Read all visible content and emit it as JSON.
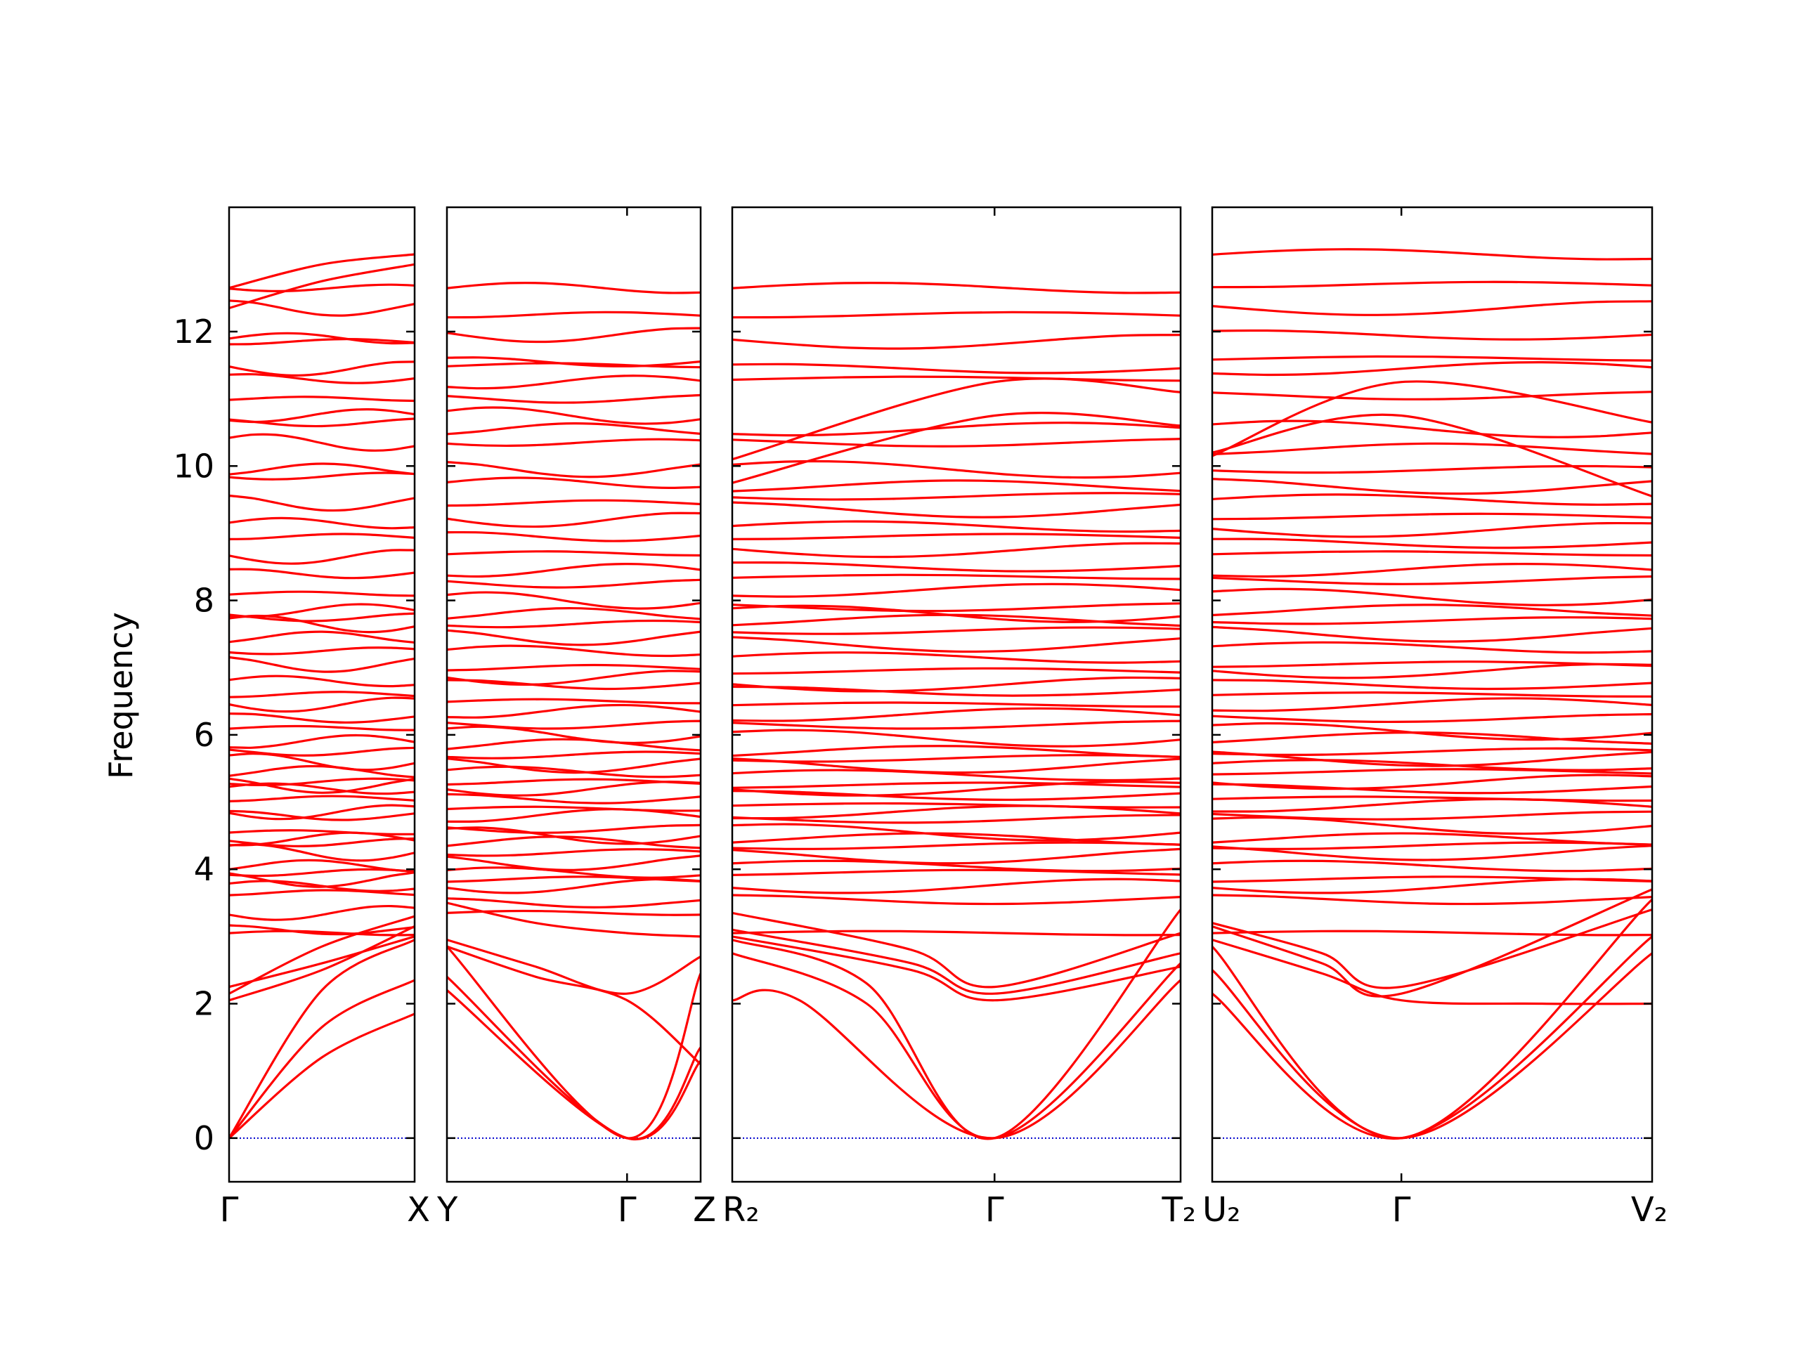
{
  "chart_data": {
    "type": "line",
    "ylabel": "Frequency",
    "ylim": [
      -0.65,
      13.85
    ],
    "yticks": [
      0,
      2,
      4,
      6,
      8,
      10,
      12
    ],
    "colors": {
      "band": "#ff0000",
      "zero_line": "#0000cc",
      "axes": "#000000"
    },
    "panels": [
      {
        "id": "p1",
        "xticks": [
          {
            "pos": 0,
            "label": "Γ"
          },
          {
            "pos": 1,
            "label": "X"
          }
        ],
        "paths": [
          {
            "name": "acoustic",
            "points": [
              [
                0,
                0
              ],
              [
                0.5,
                1.2
              ],
              [
                1,
                1.85
              ]
            ]
          },
          {
            "name": "acoustic",
            "points": [
              [
                0,
                0
              ],
              [
                0.5,
                1.65
              ],
              [
                1,
                2.35
              ]
            ]
          },
          {
            "name": "acoustic",
            "points": [
              [
                0,
                0
              ],
              [
                0.5,
                2.2
              ],
              [
                1,
                2.95
              ]
            ]
          },
          {
            "name": "optical",
            "points": [
              [
                0,
                2.05
              ],
              [
                0.5,
                2.5
              ],
              [
                1,
                3.15
              ]
            ]
          },
          {
            "name": "optical",
            "points": [
              [
                0,
                2.15
              ],
              [
                0.5,
                2.85
              ],
              [
                1,
                3.3
              ]
            ]
          },
          {
            "name": "optical",
            "points": [
              [
                0,
                2.25
              ],
              [
                0.5,
                2.6
              ],
              [
                1,
                3.0
              ]
            ]
          }
        ],
        "flat_levels": [
          3.05,
          3.1,
          3.35,
          3.65,
          3.75,
          3.85,
          3.95,
          4.05,
          4.25,
          4.4,
          4.45,
          4.55,
          4.8,
          4.85,
          5.05,
          5.2,
          5.25,
          5.3,
          5.45,
          5.6,
          5.75,
          5.9,
          6.1,
          6.25,
          6.45,
          6.6,
          6.8,
          7.05,
          7.25,
          7.45,
          7.65,
          7.75,
          7.85,
          8.1,
          8.4,
          8.65,
          8.95,
          9.15,
          9.45,
          9.85,
          9.95,
          10.35,
          10.65,
          10.75,
          11.0,
          11.3,
          11.45,
          11.85,
          11.9,
          12.35,
          12.65
        ],
        "top_bands": [
          {
            "points": [
              [
                0,
                12.35
              ],
              [
                0.5,
                12.75
              ],
              [
                1,
                13.0
              ]
            ]
          },
          {
            "points": [
              [
                0,
                12.65
              ],
              [
                0.5,
                13.0
              ],
              [
                1,
                13.15
              ]
            ]
          }
        ]
      },
      {
        "id": "p2",
        "xticks": [
          {
            "pos": 0,
            "label": "Y"
          },
          {
            "pos": 0.71,
            "label": "Γ"
          },
          {
            "pos": 1,
            "label": "Z"
          }
        ],
        "paths": [
          {
            "name": "acoustic",
            "points": [
              [
                0,
                2.2
              ],
              [
                0.71,
                0
              ],
              [
                1,
                1.15
              ]
            ]
          },
          {
            "name": "acoustic",
            "points": [
              [
                0,
                2.4
              ],
              [
                0.71,
                0
              ],
              [
                1,
                1.35
              ]
            ]
          },
          {
            "name": "acoustic",
            "points": [
              [
                0,
                2.85
              ],
              [
                0.71,
                0
              ],
              [
                1,
                2.45
              ]
            ]
          },
          {
            "name": "optical",
            "points": [
              [
                0,
                2.85
              ],
              [
                0.35,
                2.4
              ],
              [
                0.71,
                2.05
              ],
              [
                1,
                1.1
              ]
            ]
          },
          {
            "name": "optical",
            "points": [
              [
                0,
                2.95
              ],
              [
                0.35,
                2.55
              ],
              [
                0.71,
                2.15
              ],
              [
                1,
                2.7
              ]
            ]
          },
          {
            "name": "optical",
            "points": [
              [
                0,
                3.5
              ],
              [
                0.35,
                3.2
              ],
              [
                0.71,
                3.05
              ],
              [
                1,
                3.0
              ]
            ]
          }
        ],
        "flat_levels": [
          3.35,
          3.5,
          3.75,
          3.85,
          3.95,
          4.1,
          4.25,
          4.4,
          4.5,
          4.6,
          4.8,
          4.9,
          5.05,
          5.2,
          5.3,
          5.45,
          5.55,
          5.7,
          5.85,
          6.0,
          6.15,
          6.35,
          6.5,
          6.75,
          6.85,
          7.0,
          7.25,
          7.45,
          7.65,
          7.8,
          8.0,
          8.25,
          8.45,
          8.7,
          8.95,
          9.2,
          9.45,
          9.75,
          9.95,
          10.35,
          10.55,
          10.75,
          11.0,
          11.25,
          11.5,
          11.55,
          11.95,
          12.25,
          12.65
        ],
        "top_bands": []
      },
      {
        "id": "p3",
        "xticks": [
          {
            "pos": 0,
            "label": "R₂"
          },
          {
            "pos": 0.585,
            "label": "Γ"
          },
          {
            "pos": 1,
            "label": "T₂"
          }
        ],
        "paths": [
          {
            "name": "acoustic",
            "points": [
              [
                0,
                2.05
              ],
              [
                0.15,
                2.05
              ],
              [
                0.585,
                0
              ],
              [
                1,
                2.35
              ]
            ]
          },
          {
            "name": "acoustic",
            "points": [
              [
                0,
                2.75
              ],
              [
                0.3,
                2.0
              ],
              [
                0.585,
                0
              ],
              [
                1,
                2.6
              ]
            ]
          },
          {
            "name": "acoustic",
            "points": [
              [
                0,
                2.95
              ],
              [
                0.3,
                2.3
              ],
              [
                0.585,
                0
              ],
              [
                1,
                3.4
              ]
            ]
          },
          {
            "name": "optical",
            "points": [
              [
                0,
                3.0
              ],
              [
                0.4,
                2.5
              ],
              [
                0.585,
                2.05
              ],
              [
                1,
                2.55
              ]
            ]
          },
          {
            "name": "optical",
            "points": [
              [
                0,
                3.1
              ],
              [
                0.4,
                2.6
              ],
              [
                0.585,
                2.15
              ],
              [
                1,
                2.75
              ]
            ]
          },
          {
            "name": "optical",
            "points": [
              [
                0,
                3.35
              ],
              [
                0.4,
                2.8
              ],
              [
                0.585,
                2.25
              ],
              [
                1,
                3.05
              ]
            ]
          },
          {
            "name": "upper",
            "points": [
              [
                0,
                10.1
              ],
              [
                0.585,
                11.25
              ],
              [
                1,
                11.1
              ]
            ]
          },
          {
            "name": "upper",
            "points": [
              [
                0,
                9.75
              ],
              [
                0.585,
                10.75
              ],
              [
                1,
                10.6
              ]
            ]
          }
        ],
        "flat_levels": [
          3.05,
          3.55,
          3.75,
          3.95,
          4.05,
          4.2,
          4.35,
          4.45,
          4.55,
          4.75,
          4.85,
          4.95,
          5.1,
          5.2,
          5.25,
          5.4,
          5.55,
          5.65,
          5.75,
          5.95,
          6.15,
          6.3,
          6.45,
          6.65,
          6.75,
          6.95,
          7.15,
          7.35,
          7.55,
          7.7,
          7.8,
          7.9,
          8.15,
          8.35,
          8.5,
          8.75,
          8.95,
          9.1,
          9.35,
          9.55,
          9.7,
          9.95,
          10.35,
          10.55,
          11.3,
          11.45,
          11.85,
          12.25,
          12.65
        ],
        "top_bands": []
      },
      {
        "id": "p4",
        "xticks": [
          {
            "pos": 0,
            "label": "U₂"
          },
          {
            "pos": 0.43,
            "label": "Γ"
          },
          {
            "pos": 1,
            "label": "V₂"
          }
        ],
        "paths": [
          {
            "name": "acoustic",
            "points": [
              [
                0,
                2.15
              ],
              [
                0.43,
                0
              ],
              [
                1,
                3.0
              ]
            ]
          },
          {
            "name": "acoustic",
            "points": [
              [
                0,
                2.5
              ],
              [
                0.43,
                0
              ],
              [
                1,
                2.75
              ]
            ]
          },
          {
            "name": "acoustic",
            "points": [
              [
                0,
                2.85
              ],
              [
                0.43,
                0
              ],
              [
                1,
                3.55
              ]
            ]
          },
          {
            "name": "optical",
            "points": [
              [
                0,
                2.95
              ],
              [
                0.25,
                2.45
              ],
              [
                0.43,
                2.05
              ],
              [
                0.75,
                2.0
              ],
              [
                1,
                2.0
              ]
            ]
          },
          {
            "name": "optical",
            "points": [
              [
                0,
                3.15
              ],
              [
                0.25,
                2.6
              ],
              [
                0.43,
                2.15
              ],
              [
                1,
                3.7
              ]
            ]
          },
          {
            "name": "optical",
            "points": [
              [
                0,
                3.2
              ],
              [
                0.25,
                2.75
              ],
              [
                0.43,
                2.25
              ],
              [
                1,
                3.4
              ]
            ]
          },
          {
            "name": "upper",
            "points": [
              [
                0,
                10.15
              ],
              [
                0.43,
                11.25
              ],
              [
                1,
                10.65
              ]
            ]
          },
          {
            "name": "upper",
            "points": [
              [
                0,
                10.2
              ],
              [
                0.43,
                10.75
              ],
              [
                1,
                9.55
              ]
            ]
          }
        ],
        "flat_levels": [
          3.05,
          3.55,
          3.75,
          3.85,
          4.05,
          4.25,
          4.35,
          4.45,
          4.65,
          4.8,
          4.95,
          5.05,
          5.2,
          5.3,
          5.45,
          5.55,
          5.65,
          5.75,
          5.95,
          6.05,
          6.25,
          6.45,
          6.6,
          6.75,
          6.95,
          7.05,
          7.3,
          7.5,
          7.7,
          7.85,
          8.05,
          8.3,
          8.45,
          8.7,
          8.85,
          9.05,
          9.25,
          9.5,
          9.7,
          9.95,
          10.25,
          10.55,
          11.05,
          11.45,
          11.6,
          11.95,
          12.35,
          12.7,
          13.15
        ],
        "top_bands": []
      }
    ]
  }
}
